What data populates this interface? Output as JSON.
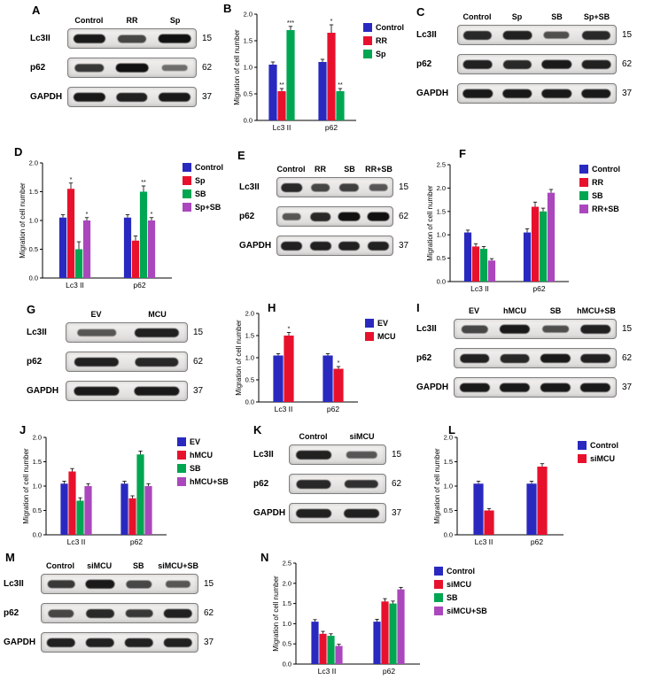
{
  "figure": {
    "background": "#ffffff"
  },
  "colors": {
    "blue": "#2929c0",
    "red": "#e8112d",
    "green": "#00a651",
    "purple": "#ab47bc"
  },
  "panels": [
    {
      "label": "A",
      "type": "blot",
      "lanes": [
        "Control",
        "RR",
        "Sp"
      ],
      "rows": [
        {
          "protein": "Lc3II",
          "mw": "15",
          "bands": [
            0.9,
            0.6,
            0.95
          ]
        },
        {
          "protein": "p62",
          "mw": "62",
          "bands": [
            0.7,
            0.95,
            0.35
          ]
        },
        {
          "protein": "GAPDH",
          "mw": "37",
          "bands": [
            0.9,
            0.85,
            0.9
          ]
        }
      ]
    },
    {
      "label": "B",
      "type": "chart",
      "chart": 0
    },
    {
      "label": "C",
      "type": "blot",
      "lanes": [
        "Control",
        "Sp",
        "SB",
        "Sp+SB"
      ],
      "rows": [
        {
          "protein": "Lc3II",
          "mw": "15",
          "bands": [
            0.8,
            0.85,
            0.55,
            0.8
          ]
        },
        {
          "protein": "p62",
          "mw": "62",
          "bands": [
            0.85,
            0.8,
            0.9,
            0.85
          ]
        },
        {
          "protein": "GAPDH",
          "mw": "37",
          "bands": [
            0.9,
            0.9,
            0.9,
            0.9
          ]
        }
      ]
    },
    {
      "label": "D",
      "type": "chart",
      "chart": 1
    },
    {
      "label": "E",
      "type": "blot",
      "lanes": [
        "Control",
        "RR",
        "SB",
        "RR+SB"
      ],
      "rows": [
        {
          "protein": "Lc3II",
          "mw": "15",
          "bands": [
            0.8,
            0.6,
            0.65,
            0.5
          ]
        },
        {
          "protein": "p62",
          "mw": "62",
          "bands": [
            0.5,
            0.8,
            0.95,
            0.95
          ]
        },
        {
          "protein": "GAPDH",
          "mw": "37",
          "bands": [
            0.85,
            0.85,
            0.85,
            0.85
          ]
        }
      ]
    },
    {
      "label": "F",
      "type": "chart",
      "chart": 2
    },
    {
      "label": "G",
      "type": "blot",
      "lanes": [
        "EV",
        "MCU"
      ],
      "rows": [
        {
          "protein": "Lc3II",
          "mw": "15",
          "bands": [
            0.5,
            0.85
          ]
        },
        {
          "protein": "p62",
          "mw": "62",
          "bands": [
            0.85,
            0.8
          ]
        },
        {
          "protein": "GAPDH",
          "mw": "37",
          "bands": [
            0.9,
            0.9
          ]
        }
      ]
    },
    {
      "label": "H",
      "type": "chart",
      "chart": 3
    },
    {
      "label": "I",
      "type": "blot",
      "lanes": [
        "EV",
        "hMCU",
        "SB",
        "hMCU+SB"
      ],
      "rows": [
        {
          "protein": "Lc3II",
          "mw": "15",
          "bands": [
            0.6,
            0.9,
            0.55,
            0.85
          ]
        },
        {
          "protein": "p62",
          "mw": "62",
          "bands": [
            0.85,
            0.8,
            0.9,
            0.85
          ]
        },
        {
          "protein": "GAPDH",
          "mw": "37",
          "bands": [
            0.9,
            0.9,
            0.9,
            0.9
          ]
        }
      ]
    },
    {
      "label": "J",
      "type": "chart",
      "chart": 4
    },
    {
      "label": "K",
      "type": "blot",
      "lanes": [
        "Control",
        "siMCU"
      ],
      "rows": [
        {
          "protein": "Lc3II",
          "mw": "15",
          "bands": [
            0.85,
            0.5
          ]
        },
        {
          "protein": "p62",
          "mw": "62",
          "bands": [
            0.8,
            0.75
          ]
        },
        {
          "protein": "GAPDH",
          "mw": "37",
          "bands": [
            0.85,
            0.85
          ]
        }
      ]
    },
    {
      "label": "L",
      "type": "chart",
      "chart": 5
    },
    {
      "label": "M",
      "type": "blot",
      "lanes": [
        "Control",
        "siMCU",
        "SB",
        "siMCU+SB"
      ],
      "rows": [
        {
          "protein": "Lc3II",
          "mw": "15",
          "bands": [
            0.7,
            0.9,
            0.6,
            0.5
          ]
        },
        {
          "protein": "p62",
          "mw": "62",
          "bands": [
            0.6,
            0.8,
            0.7,
            0.85
          ]
        },
        {
          "protein": "GAPDH",
          "mw": "37",
          "bands": [
            0.85,
            0.85,
            0.85,
            0.85
          ]
        }
      ]
    },
    {
      "label": "N",
      "type": "chart",
      "chart": 6
    }
  ],
  "chart_data": [
    {
      "type": "bar",
      "panel": "B",
      "title": "",
      "xlabel": "",
      "ylabel": "Migration of cell number",
      "categories": [
        "Lc3 II",
        "p62"
      ],
      "ylim": [
        0,
        2.0
      ],
      "yticks": [
        0,
        0.5,
        1.0,
        1.5,
        2.0
      ],
      "ytick_labels": [
        "0.0",
        "0.5",
        "1.0",
        "1.5",
        "2.0"
      ],
      "legend_position": "right",
      "grid": false,
      "series": [
        {
          "name": "Control",
          "color": "#2929c0",
          "values": [
            1.05,
            1.1
          ],
          "errors": [
            0.05,
            0.05
          ],
          "sig": [
            "",
            ""
          ]
        },
        {
          "name": "RR",
          "color": "#e8112d",
          "values": [
            0.55,
            1.65
          ],
          "errors": [
            0.05,
            0.15
          ],
          "sig": [
            "**",
            "*"
          ]
        },
        {
          "name": "Sp",
          "color": "#00a651",
          "values": [
            1.7,
            0.55
          ],
          "errors": [
            0.07,
            0.05
          ],
          "sig": [
            "***",
            "**"
          ]
        }
      ]
    },
    {
      "type": "bar",
      "panel": "D",
      "title": "",
      "xlabel": "",
      "ylabel": "Migration of cell number",
      "categories": [
        "Lc3 II",
        "p62"
      ],
      "ylim": [
        0,
        2.0
      ],
      "yticks": [
        0,
        0.5,
        1.0,
        1.5,
        2.0
      ],
      "ytick_labels": [
        "0.0",
        "0.5",
        "1.0",
        "1.5",
        "2.0"
      ],
      "legend_position": "right",
      "grid": false,
      "series": [
        {
          "name": "Control",
          "color": "#2929c0",
          "values": [
            1.05,
            1.05
          ],
          "errors": [
            0.05,
            0.05
          ],
          "sig": [
            "",
            ""
          ]
        },
        {
          "name": "Sp",
          "color": "#e8112d",
          "values": [
            1.55,
            0.65
          ],
          "errors": [
            0.1,
            0.08
          ],
          "sig": [
            "*",
            ""
          ]
        },
        {
          "name": "SB",
          "color": "#00a651",
          "values": [
            0.5,
            1.5
          ],
          "errors": [
            0.13,
            0.1
          ],
          "sig": [
            "",
            "**"
          ]
        },
        {
          "name": "Sp+SB",
          "color": "#ab47bc",
          "values": [
            1.0,
            1.0
          ],
          "errors": [
            0.05,
            0.05
          ],
          "sig": [
            "*",
            "*"
          ]
        }
      ]
    },
    {
      "type": "bar",
      "panel": "F",
      "title": "",
      "xlabel": "",
      "ylabel": "Migration of cell number",
      "categories": [
        "Lc3 II",
        "p62"
      ],
      "ylim": [
        0,
        2.5
      ],
      "yticks": [
        0,
        0.5,
        1.0,
        1.5,
        2.0,
        2.5
      ],
      "ytick_labels": [
        "0.0",
        "0.5",
        "1.0",
        "1.5",
        "2.0",
        "2.5"
      ],
      "legend_position": "right",
      "grid": false,
      "series": [
        {
          "name": "Control",
          "color": "#2929c0",
          "values": [
            1.05,
            1.05
          ],
          "errors": [
            0.05,
            0.08
          ],
          "sig": [
            "",
            ""
          ]
        },
        {
          "name": "RR",
          "color": "#e8112d",
          "values": [
            0.75,
            1.6
          ],
          "errors": [
            0.06,
            0.1
          ],
          "sig": [
            "",
            ""
          ]
        },
        {
          "name": "SB",
          "color": "#00a651",
          "values": [
            0.7,
            1.5
          ],
          "errors": [
            0.05,
            0.07
          ],
          "sig": [
            "",
            ""
          ]
        },
        {
          "name": "RR+SB",
          "color": "#ab47bc",
          "values": [
            0.45,
            1.9
          ],
          "errors": [
            0.04,
            0.07
          ],
          "sig": [
            "",
            ""
          ]
        }
      ]
    },
    {
      "type": "bar",
      "panel": "H",
      "title": "",
      "xlabel": "",
      "ylabel": "Migration of cell number",
      "categories": [
        "Lc3 II",
        "p62"
      ],
      "ylim": [
        0,
        2.0
      ],
      "yticks": [
        0,
        0.5,
        1.0,
        1.5,
        2.0
      ],
      "ytick_labels": [
        "0.0",
        "0.5",
        "1.0",
        "1.5",
        "2.0"
      ],
      "legend_position": "right",
      "grid": false,
      "series": [
        {
          "name": "EV",
          "color": "#2929c0",
          "values": [
            1.05,
            1.05
          ],
          "errors": [
            0.04,
            0.04
          ],
          "sig": [
            "",
            ""
          ]
        },
        {
          "name": "MCU",
          "color": "#e8112d",
          "values": [
            1.5,
            0.75
          ],
          "errors": [
            0.07,
            0.05
          ],
          "sig": [
            "*",
            "*"
          ]
        }
      ]
    },
    {
      "type": "bar",
      "panel": "J",
      "title": "",
      "xlabel": "",
      "ylabel": "Migration of cell number",
      "categories": [
        "Lc3 II",
        "p62"
      ],
      "ylim": [
        0,
        2.0
      ],
      "yticks": [
        0,
        0.5,
        1.0,
        1.5,
        2.0
      ],
      "ytick_labels": [
        "0.0",
        "0.5",
        "1.0",
        "1.5",
        "2.0"
      ],
      "legend_position": "right",
      "grid": false,
      "series": [
        {
          "name": "EV",
          "color": "#2929c0",
          "values": [
            1.05,
            1.05
          ],
          "errors": [
            0.05,
            0.05
          ],
          "sig": [
            "",
            ""
          ]
        },
        {
          "name": "hMCU",
          "color": "#e8112d",
          "values": [
            1.3,
            0.75
          ],
          "errors": [
            0.06,
            0.05
          ],
          "sig": [
            "",
            ""
          ]
        },
        {
          "name": "SB",
          "color": "#00a651",
          "values": [
            0.7,
            1.65
          ],
          "errors": [
            0.06,
            0.07
          ],
          "sig": [
            "",
            ""
          ]
        },
        {
          "name": "hMCU+SB",
          "color": "#ab47bc",
          "values": [
            1.0,
            1.0
          ],
          "errors": [
            0.05,
            0.05
          ],
          "sig": [
            "",
            ""
          ]
        }
      ]
    },
    {
      "type": "bar",
      "panel": "L",
      "title": "",
      "xlabel": "",
      "ylabel": "Migration of cell number",
      "categories": [
        "Lc3 II",
        "p62"
      ],
      "ylim": [
        0,
        2.0
      ],
      "yticks": [
        0,
        0.5,
        1.0,
        1.5,
        2.0
      ],
      "ytick_labels": [
        "0.0",
        "0.5",
        "1.0",
        "1.5",
        "2.0"
      ],
      "legend_position": "right",
      "grid": false,
      "series": [
        {
          "name": "Control",
          "color": "#2929c0",
          "values": [
            1.05,
            1.05
          ],
          "errors": [
            0.05,
            0.05
          ],
          "sig": [
            "",
            ""
          ]
        },
        {
          "name": "siMCU",
          "color": "#e8112d",
          "values": [
            0.5,
            1.4
          ],
          "errors": [
            0.04,
            0.06
          ],
          "sig": [
            "",
            ""
          ]
        }
      ]
    },
    {
      "type": "bar",
      "panel": "N",
      "title": "",
      "xlabel": "",
      "ylabel": "Migration of cell number",
      "categories": [
        "Lc3 II",
        "p62"
      ],
      "ylim": [
        0,
        2.5
      ],
      "yticks": [
        0,
        0.5,
        1.0,
        1.5,
        2.0,
        2.5
      ],
      "ytick_labels": [
        "0.0",
        "0.5",
        "1.0",
        "1.5",
        "2.0",
        "2.5"
      ],
      "legend_position": "right",
      "grid": false,
      "series": [
        {
          "name": "Control",
          "color": "#2929c0",
          "values": [
            1.05,
            1.05
          ],
          "errors": [
            0.05,
            0.06
          ],
          "sig": [
            "",
            ""
          ]
        },
        {
          "name": "siMCU",
          "color": "#e8112d",
          "values": [
            0.75,
            1.55
          ],
          "errors": [
            0.06,
            0.07
          ],
          "sig": [
            "",
            ""
          ]
        },
        {
          "name": "SB",
          "color": "#00a651",
          "values": [
            0.7,
            1.5
          ],
          "errors": [
            0.05,
            0.06
          ],
          "sig": [
            "",
            ""
          ]
        },
        {
          "name": "siMCU+SB",
          "color": "#ab47bc",
          "values": [
            0.45,
            1.85
          ],
          "errors": [
            0.04,
            0.05
          ],
          "sig": [
            "",
            ""
          ]
        }
      ]
    }
  ]
}
